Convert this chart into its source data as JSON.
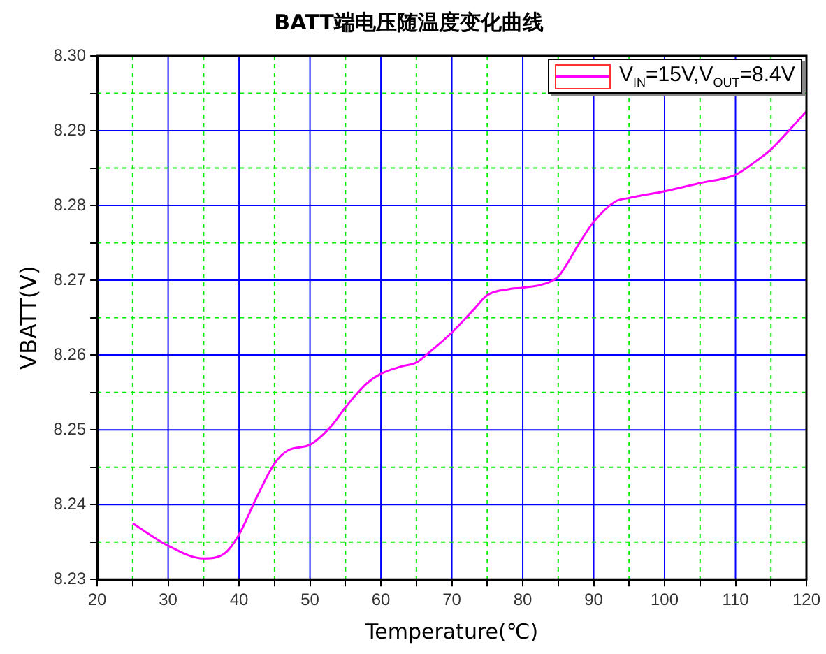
{
  "chart_data": {
    "type": "line",
    "title": "BATT端电压随温度变化曲线",
    "xlabel": "Temperature(℃)",
    "ylabel": "VBATT(V)",
    "x": [
      25,
      30,
      35,
      38,
      40,
      42.5,
      45,
      47,
      50,
      53,
      55,
      58,
      60,
      63,
      65,
      67,
      70,
      73,
      75,
      78,
      80,
      83,
      85,
      88,
      90,
      93,
      95,
      100,
      105,
      110,
      113,
      115,
      118,
      120
    ],
    "series": [
      {
        "name": "V$_{IN}$=15V,V$_{OUT}$=8.4V",
        "color": "#ff00ff",
        "values": [
          8.2375,
          8.2345,
          8.2328,
          8.2335,
          8.236,
          8.241,
          8.2455,
          8.2473,
          8.248,
          8.2505,
          8.253,
          8.2562,
          8.2575,
          8.2585,
          8.259,
          8.2605,
          8.263,
          8.266,
          8.268,
          8.2688,
          8.269,
          8.2695,
          8.2705,
          8.275,
          8.2778,
          8.2805,
          8.281,
          8.2819,
          8.283,
          8.2841,
          8.286,
          8.2875,
          8.2905,
          8.2926
        ]
      }
    ],
    "xlim": [
      20,
      120
    ],
    "xticks": [
      20,
      {
        "value": 25,
        "label": null
      },
      30,
      {
        "value": 35,
        "label": null
      },
      40,
      {
        "value": 45,
        "label": null
      },
      50,
      {
        "value": 55,
        "label": null
      },
      60,
      {
        "value": 65,
        "label": null
      },
      70,
      {
        "value": 75,
        "label": null
      },
      80,
      {
        "value": 85,
        "label": null
      },
      90,
      {
        "value": 95,
        "label": null
      },
      100,
      {
        "value": 105,
        "label": null
      },
      110,
      {
        "value": 115,
        "label": null
      },
      120
    ],
    "ylim": [
      8.23,
      8.3
    ],
    "yticks": [
      8.23,
      {
        "value": 8.235,
        "label": null
      },
      8.24,
      {
        "value": 8.245,
        "label": null
      },
      8.25,
      {
        "value": 8.255,
        "label": null
      },
      8.26,
      {
        "value": 8.265,
        "label": null
      },
      8.27,
      {
        "value": 8.275,
        "label": null
      },
      8.28,
      {
        "value": 8.285,
        "label": null
      },
      8.29,
      {
        "value": 8.295,
        "label": null
      },
      {
        "value": 8.3,
        "label": "8.30"
      }
    ],
    "grid": true,
    "legend": "top right",
    "marker": "none",
    "line_style": "solid"
  }
}
